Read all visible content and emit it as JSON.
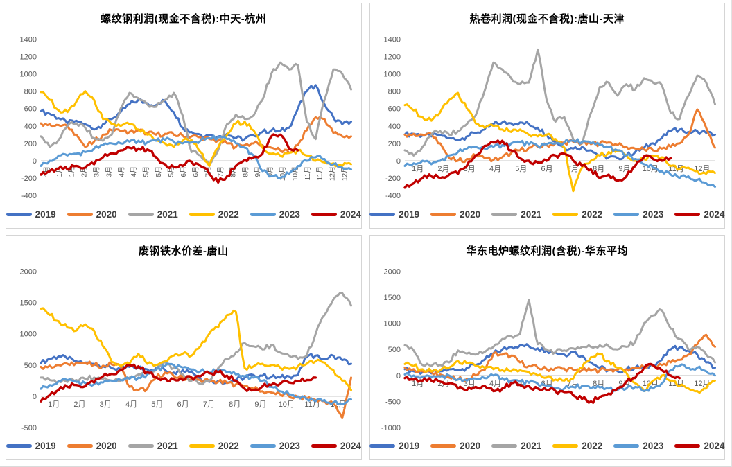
{
  "page": {
    "background": "#ffffff"
  },
  "axis_style": {
    "tick_color": "#595959",
    "zero_line_color": "#c9c9c9"
  },
  "chart_data": [
    {
      "type": "line",
      "title": "螺纹钢利润(现金不含税):中天-杭州",
      "ylim": [
        -400,
        1400
      ],
      "yticks": [
        1400,
        1200,
        1000,
        800,
        600,
        400,
        200,
        0,
        -200,
        -400
      ],
      "x_rotated": true,
      "xlabels": [
        "1月",
        "1月",
        "1月",
        "2月",
        "3月",
        "3月",
        "4月",
        "4月",
        "5月",
        "5月",
        "5月",
        "6月",
        "6月",
        "7月",
        "7月",
        "8月",
        "8月",
        "9月",
        "9月",
        "10月",
        "10月",
        "11月",
        "11月",
        "12月",
        "12月"
      ],
      "grid": false,
      "legend_position": "bottom",
      "series": [
        {
          "name": "2019",
          "color": "#4472C4",
          "values": [
            570,
            540,
            490,
            430,
            460,
            420,
            360,
            420,
            480,
            560,
            650,
            700,
            660,
            640,
            690,
            560,
            380,
            330,
            300,
            290,
            280,
            310,
            260,
            250,
            290,
            330,
            350,
            340,
            380,
            600,
            800,
            870,
            650,
            500,
            420,
            450
          ]
        },
        {
          "name": "2020",
          "color": "#ED7D31",
          "values": [
            430,
            420,
            410,
            400,
            300,
            160,
            220,
            300,
            350,
            340,
            330,
            350,
            320,
            300,
            310,
            300,
            290,
            280,
            270,
            250,
            230,
            200,
            160,
            180,
            200,
            180,
            150,
            120,
            90,
            180,
            350,
            500,
            480,
            320,
            280,
            280
          ]
        },
        {
          "name": "2021",
          "color": "#A5A5A5",
          "values": [
            280,
            160,
            240,
            400,
            430,
            380,
            260,
            230,
            300,
            600,
            780,
            720,
            650,
            620,
            700,
            780,
            520,
            100,
            60,
            -40,
            120,
            420,
            530,
            480,
            520,
            700,
            1000,
            1130,
            1050,
            1100,
            450,
            250,
            700,
            1050,
            1000,
            820
          ]
        },
        {
          "name": "2022",
          "color": "#FFC000",
          "values": [
            790,
            700,
            580,
            560,
            680,
            800,
            700,
            480,
            420,
            400,
            420,
            360,
            300,
            240,
            200,
            160,
            230,
            240,
            100,
            -60,
            150,
            300,
            430,
            450,
            350,
            150,
            80,
            60,
            90,
            120,
            60,
            0,
            -20,
            -30,
            -60,
            -40
          ]
        },
        {
          "name": "2023",
          "color": "#5B9BD5",
          "values": [
            -60,
            0,
            60,
            60,
            80,
            100,
            140,
            180,
            200,
            200,
            220,
            230,
            210,
            230,
            240,
            220,
            200,
            210,
            230,
            260,
            270,
            250,
            200,
            150,
            60,
            -120,
            -180,
            -200,
            -150,
            -60,
            0,
            40,
            20,
            -40,
            -80,
            -100
          ]
        },
        {
          "name": "2024",
          "color": "#C00000",
          "values": [
            -160,
            -120,
            -90,
            -100,
            -60,
            -80,
            -40,
            40,
            90,
            120,
            150,
            140,
            130,
            40,
            -40,
            -70,
            -60,
            -10,
            -60,
            -150,
            -250,
            -180,
            -60,
            10,
            40,
            80,
            280,
            300,
            140,
            120,
            null,
            null,
            null,
            null,
            null,
            null
          ]
        }
      ]
    },
    {
      "type": "line",
      "title": "热卷利润(现金不含税):唐山-天津",
      "ylim": [
        -400,
        1400
      ],
      "yticks": [
        1400,
        1200,
        1000,
        800,
        600,
        400,
        200,
        0,
        -200,
        -400
      ],
      "x_rotated": false,
      "xlabels": [
        "1月",
        "2月",
        "3月",
        "4月",
        "5月",
        "6月",
        "7月",
        "8月",
        "9月",
        "10月",
        "11月",
        "12月"
      ],
      "grid": false,
      "legend_position": "bottom",
      "series": [
        {
          "name": "2019",
          "color": "#4472C4",
          "values": [
            300,
            310,
            290,
            280,
            300,
            260,
            240,
            280,
            320,
            360,
            420,
            440,
            430,
            440,
            420,
            380,
            300,
            220,
            150,
            140,
            160,
            120,
            60,
            40,
            30,
            60,
            100,
            150,
            200,
            260,
            340,
            360,
            330,
            340,
            320,
            300
          ]
        },
        {
          "name": "2020",
          "color": "#ED7D31",
          "values": [
            300,
            310,
            300,
            310,
            200,
            30,
            0,
            20,
            60,
            30,
            10,
            40,
            90,
            120,
            150,
            160,
            180,
            200,
            210,
            220,
            200,
            190,
            200,
            210,
            180,
            160,
            140,
            130,
            120,
            140,
            160,
            200,
            300,
            590,
            380,
            150
          ]
        },
        {
          "name": "2021",
          "color": "#A5A5A5",
          "values": [
            120,
            60,
            160,
            300,
            340,
            300,
            340,
            420,
            520,
            800,
            1130,
            1050,
            950,
            880,
            900,
            1280,
            700,
            450,
            500,
            250,
            200,
            550,
            850,
            900,
            750,
            880,
            820,
            950,
            900,
            870,
            550,
            480,
            750,
            980,
            900,
            650
          ]
        },
        {
          "name": "2022",
          "color": "#FFC000",
          "values": [
            640,
            580,
            500,
            460,
            560,
            700,
            780,
            600,
            430,
            380,
            400,
            360,
            330,
            360,
            300,
            280,
            300,
            250,
            150,
            -350,
            -80,
            0,
            60,
            100,
            120,
            60,
            0,
            20,
            60,
            40,
            -60,
            -100,
            -80,
            -120,
            -150,
            -140
          ]
        },
        {
          "name": "2023",
          "color": "#5B9BD5",
          "values": [
            -60,
            -30,
            0,
            -40,
            0,
            60,
            100,
            140,
            160,
            140,
            160,
            180,
            200,
            210,
            190,
            170,
            190,
            200,
            210,
            230,
            220,
            200,
            180,
            160,
            120,
            60,
            20,
            -40,
            -80,
            -120,
            -160,
            -200,
            -180,
            -220,
            -260,
            -300
          ]
        },
        {
          "name": "2024",
          "color": "#C00000",
          "values": [
            -310,
            -260,
            -200,
            -180,
            -200,
            -160,
            -150,
            -60,
            60,
            170,
            210,
            230,
            120,
            30,
            0,
            -20,
            0,
            60,
            80,
            0,
            -60,
            -100,
            -200,
            -160,
            -230,
            -180,
            -60,
            50,
            20,
            0,
            30,
            null,
            null,
            null,
            null,
            null
          ]
        }
      ]
    },
    {
      "type": "line",
      "title": "废钢铁水价差-唐山",
      "ylim": [
        -500,
        2000
      ],
      "yticks": [
        2000,
        1500,
        1000,
        500,
        0,
        -500
      ],
      "x_rotated": false,
      "xlabels": [
        "1月",
        "2月",
        "3月",
        "4月",
        "5月",
        "6月",
        "7月",
        "8月",
        "9月",
        "10月",
        "11月",
        "12月"
      ],
      "grid": false,
      "legend_position": "bottom",
      "series": [
        {
          "name": "2019",
          "color": "#4472C4",
          "values": [
            530,
            600,
            640,
            600,
            560,
            540,
            520,
            480,
            450,
            440,
            470,
            460,
            430,
            450,
            420,
            380,
            420,
            400,
            280,
            230,
            250,
            220,
            260,
            300,
            340,
            330,
            310,
            300,
            320,
            340,
            630,
            650,
            600,
            650,
            580,
            520
          ]
        },
        {
          "name": "2020",
          "color": "#ED7D31",
          "values": [
            470,
            490,
            500,
            520,
            540,
            530,
            500,
            490,
            510,
            480,
            150,
            100,
            120,
            300,
            380,
            320,
            300,
            280,
            260,
            240,
            230,
            210,
            190,
            170,
            120,
            80,
            60,
            30,
            0,
            -20,
            -40,
            -60,
            -80,
            -120,
            -350,
            300
          ]
        },
        {
          "name": "2021",
          "color": "#A5A5A5",
          "values": [
            300,
            260,
            240,
            230,
            260,
            280,
            300,
            280,
            250,
            250,
            300,
            350,
            380,
            420,
            550,
            450,
            350,
            250,
            200,
            250,
            450,
            600,
            700,
            850,
            800,
            750,
            820,
            700,
            650,
            600,
            650,
            1000,
            1300,
            1550,
            1650,
            1450
          ]
        },
        {
          "name": "2022",
          "color": "#FFC000",
          "values": [
            1400,
            1300,
            1200,
            1100,
            1050,
            1150,
            1050,
            800,
            550,
            480,
            520,
            680,
            520,
            500,
            560,
            650,
            680,
            650,
            800,
            1000,
            1100,
            1300,
            1350,
            450,
            480,
            520,
            500,
            460,
            440,
            480,
            520,
            560,
            540,
            420,
            250,
            100
          ]
        },
        {
          "name": "2023",
          "color": "#5B9BD5",
          "values": [
            120,
            180,
            240,
            260,
            230,
            210,
            190,
            220,
            250,
            260,
            280,
            300,
            350,
            420,
            480,
            500,
            460,
            430,
            400,
            380,
            420,
            380,
            350,
            320,
            300,
            250,
            150,
            80,
            30,
            0,
            -50,
            -80,
            -60,
            -100,
            -120,
            -50
          ]
        },
        {
          "name": "2024",
          "color": "#C00000",
          "values": [
            -80,
            20,
            100,
            150,
            180,
            160,
            220,
            320,
            360,
            420,
            500,
            480,
            380,
            300,
            290,
            270,
            260,
            300,
            320,
            370,
            380,
            330,
            250,
            120,
            100,
            160,
            180,
            200,
            220,
            240,
            260,
            300,
            null,
            null,
            null,
            null
          ]
        }
      ]
    },
    {
      "type": "line",
      "title": "华东电炉螺纹利润(含税)-华东平均",
      "ylim": [
        -1000,
        2000
      ],
      "yticks": [
        2000,
        1500,
        1000,
        500,
        0,
        -500,
        -1000
      ],
      "x_rotated": false,
      "xlabels": [
        "1月",
        "2月",
        "3月",
        "4月",
        "5月",
        "6月",
        "7月",
        "8月",
        "9月",
        "10月",
        "11月",
        "12月"
      ],
      "grid": false,
      "legend_position": "bottom",
      "series": [
        {
          "name": "2019",
          "color": "#4472C4",
          "values": [
            120,
            80,
            60,
            40,
            80,
            120,
            100,
            150,
            200,
            300,
            420,
            500,
            550,
            580,
            560,
            520,
            480,
            440,
            400,
            450,
            380,
            250,
            150,
            100,
            80,
            120,
            150,
            150,
            200,
            300,
            500,
            540,
            480,
            400,
            250,
            150
          ]
        },
        {
          "name": "2020",
          "color": "#ED7D31",
          "values": [
            150,
            120,
            80,
            60,
            20,
            -40,
            -80,
            -60,
            0,
            100,
            420,
            400,
            380,
            250,
            180,
            150,
            120,
            140,
            130,
            110,
            100,
            90,
            100,
            110,
            100,
            120,
            140,
            160,
            180,
            200,
            250,
            300,
            400,
            600,
            780,
            550
          ]
        },
        {
          "name": "2021",
          "color": "#A5A5A5",
          "values": [
            580,
            480,
            200,
            180,
            200,
            250,
            480,
            420,
            400,
            450,
            550,
            700,
            750,
            800,
            1450,
            600,
            500,
            450,
            480,
            520,
            550,
            550,
            580,
            560,
            500,
            550,
            650,
            1000,
            1150,
            1250,
            900,
            700,
            500,
            550,
            400,
            250
          ]
        },
        {
          "name": "2022",
          "color": "#FFC000",
          "values": [
            220,
            180,
            120,
            80,
            100,
            150,
            280,
            230,
            180,
            150,
            120,
            100,
            80,
            100,
            60,
            0,
            -40,
            -80,
            -100,
            -60,
            150,
            350,
            400,
            280,
            150,
            50,
            -150,
            -300,
            -100,
            0,
            -100,
            -200,
            -250,
            -300,
            -250,
            -100
          ]
        },
        {
          "name": "2023",
          "color": "#5B9BD5",
          "values": [
            20,
            0,
            -20,
            -40,
            -20,
            0,
            -80,
            -100,
            -60,
            -50,
            0,
            -50,
            -100,
            -120,
            -140,
            -160,
            -200,
            -250,
            -250,
            -220,
            -200,
            -250,
            -230,
            -250,
            -280,
            -250,
            -220,
            -300,
            -250,
            -150,
            100,
            180,
            150,
            150,
            80,
            0
          ]
        },
        {
          "name": "2024",
          "color": "#C00000",
          "values": [
            -50,
            -80,
            -100,
            -100,
            -120,
            -150,
            -250,
            -280,
            -220,
            -200,
            -300,
            -250,
            -150,
            -180,
            -200,
            -250,
            -280,
            -300,
            -320,
            -380,
            -450,
            -500,
            -420,
            -350,
            -250,
            -120,
            -50,
            150,
            200,
            100,
            0,
            -50,
            null,
            null,
            null,
            null
          ]
        }
      ]
    }
  ]
}
